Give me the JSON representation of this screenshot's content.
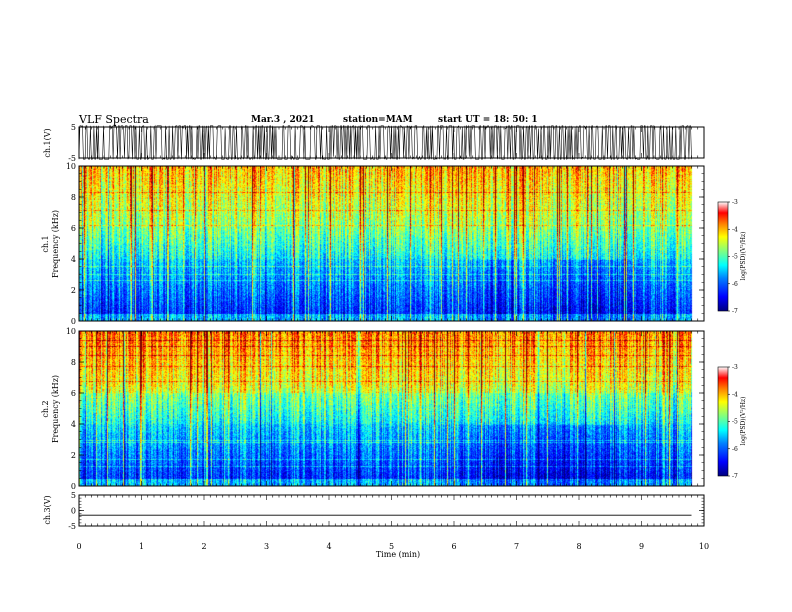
{
  "header": {
    "title": "VLF Spectra",
    "date": "Mar.3   , 2021",
    "station": "station=MAM",
    "start_time": "start  UT  =   18: 50: 1"
  },
  "chart_data": [
    {
      "type": "line",
      "panel": "ch1-waveform",
      "ylabel": "ch.1(V)",
      "ylim": [
        -5,
        5
      ],
      "yticks": [
        "5",
        "-5"
      ],
      "x_range_min": [
        0,
        9.8
      ],
      "description_values": "dense impulsive signal spanning about -5 to 5 V"
    },
    {
      "type": "heatmap",
      "panel": "ch1-spectrogram",
      "ylabel_line1": "ch.1",
      "ylabel_line2": "Frequency (kHz)",
      "ylim": [
        0,
        10
      ],
      "yticks": [
        "0",
        "2",
        "4",
        "6",
        "8",
        "10"
      ],
      "colorbar": {
        "label": "log(PSD)(V²/Hz)",
        "min": -7,
        "max": -3,
        "ticks": [
          "-3",
          "-4",
          "-5",
          "-6",
          "-7"
        ]
      }
    },
    {
      "type": "heatmap",
      "panel": "ch2-spectrogram",
      "ylabel_line1": "ch.2",
      "ylabel_line2": "Frequency (kHz)",
      "ylim": [
        0,
        10
      ],
      "yticks": [
        "0",
        "2",
        "4",
        "6",
        "8",
        "10"
      ],
      "colorbar": {
        "label": "log(PSD)(V²/Hz)",
        "min": -7,
        "max": -3,
        "ticks": [
          "-3",
          "-4",
          "-5",
          "-6",
          "-7"
        ]
      }
    },
    {
      "type": "line",
      "panel": "ch3-waveform",
      "ylabel": "ch.3(V)",
      "ylim": [
        -5,
        5
      ],
      "yticks": [
        "5",
        "0",
        "-5"
      ],
      "y_value": -1.5
    }
  ],
  "xaxis": {
    "label": "Time  (min)",
    "min": 0,
    "max": 10,
    "ticks": [
      "0",
      "1",
      "2",
      "3",
      "4",
      "5",
      "6",
      "7",
      "8",
      "9",
      "10"
    ],
    "data_end": 9.8
  },
  "colors": {
    "spectrum": [
      "#000080",
      "#0000ff",
      "#0080ff",
      "#00ffff",
      "#80ff80",
      "#ffff00",
      "#ff8000",
      "#ff0000",
      "#800000"
    ]
  }
}
